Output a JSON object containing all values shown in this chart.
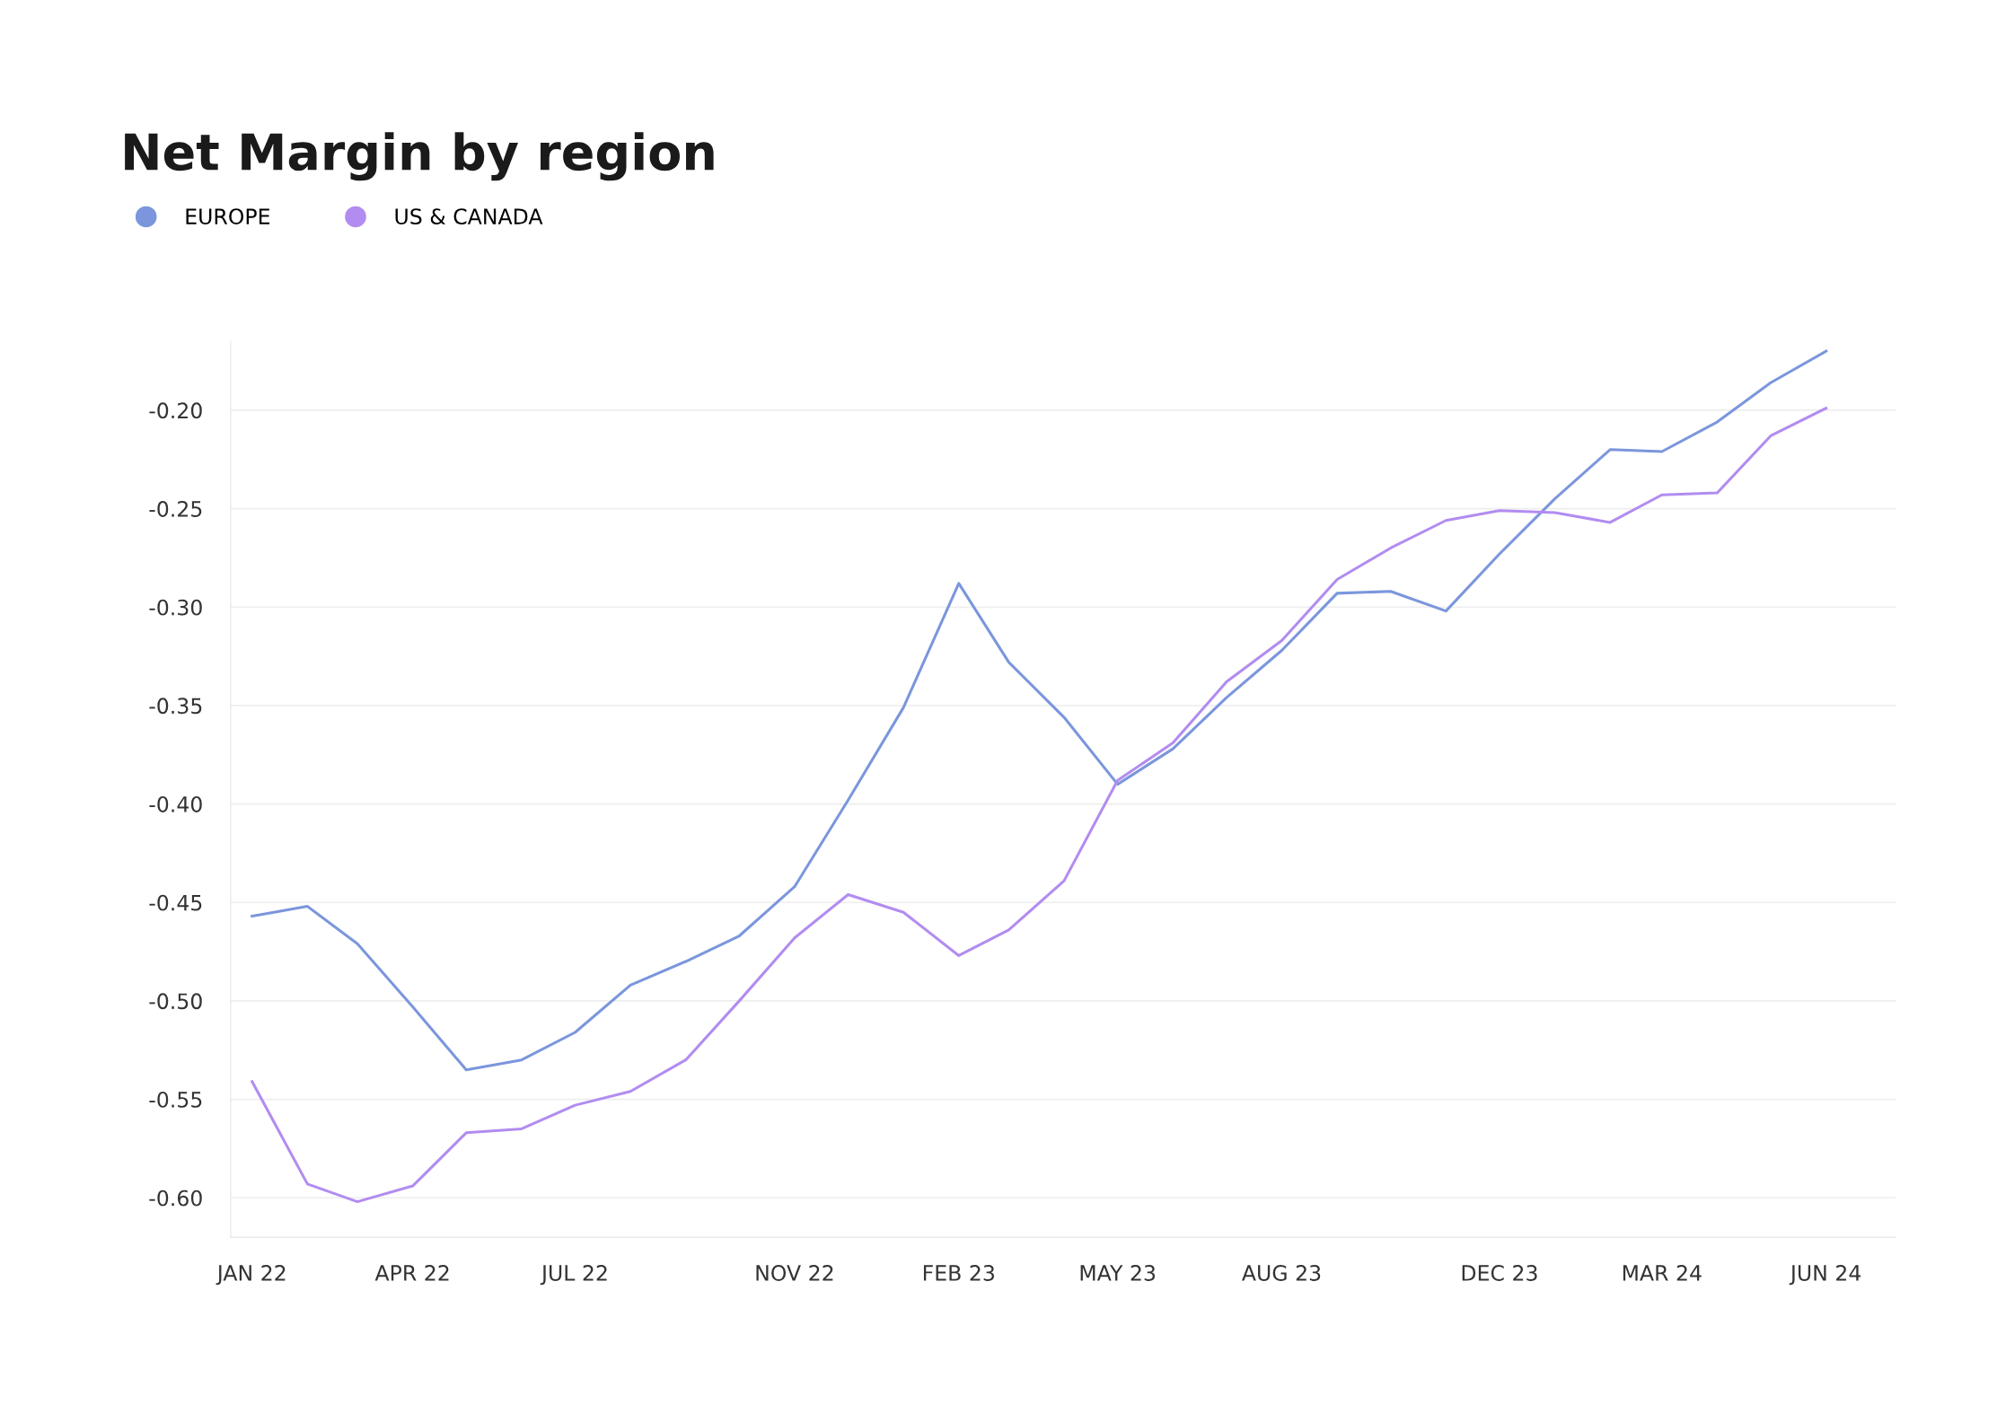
{
  "chart_data": {
    "type": "line",
    "title": "Net Margin by region",
    "x": [
      "2022-01",
      "2022-02",
      "2022-03",
      "2022-04",
      "2022-05",
      "2022-06",
      "2022-07",
      "2022-08",
      "2022-09",
      "2022-10",
      "2022-11",
      "2022-12",
      "2023-01",
      "2023-02",
      "2023-03",
      "2023-04",
      "2023-05",
      "2023-06",
      "2023-07",
      "2023-08",
      "2023-09",
      "2023-10",
      "2023-11",
      "2023-12",
      "2024-01",
      "2024-02",
      "2024-03",
      "2024-04",
      "2024-05",
      "2024-06"
    ],
    "series": [
      {
        "name": "EUROPE",
        "color": "#7b96dc",
        "values": [
          -0.457,
          -0.452,
          -0.471,
          -0.503,
          -0.535,
          -0.53,
          -0.516,
          -0.492,
          -0.48,
          -0.467,
          -0.442,
          -0.398,
          -0.351,
          -0.288,
          -0.328,
          -0.356,
          -0.39,
          -0.372,
          -0.346,
          -0.322,
          -0.293,
          -0.292,
          -0.302,
          -0.273,
          -0.245,
          -0.22,
          -0.221,
          -0.206,
          -0.186,
          -0.17
        ]
      },
      {
        "name": "US & CANADA",
        "color": "#b28cf0",
        "values": [
          -0.541,
          -0.593,
          -0.602,
          -0.594,
          -0.567,
          -0.565,
          -0.553,
          -0.546,
          -0.53,
          -0.5,
          -0.468,
          -0.446,
          -0.455,
          -0.477,
          -0.464,
          -0.439,
          -0.388,
          -0.369,
          -0.338,
          -0.317,
          -0.286,
          -0.27,
          -0.256,
          -0.251,
          -0.252,
          -0.257,
          -0.243,
          -0.242,
          -0.213,
          -0.199
        ]
      }
    ],
    "xlim": [
      "2021-12-20",
      "2024-07-10"
    ],
    "xticks": [
      {
        "value": "2022-01-01",
        "label": "JAN 22"
      },
      {
        "value": "2022-04-01",
        "label": "APR 22"
      },
      {
        "value": "2022-07-01",
        "label": "JUL 22"
      },
      {
        "value": "2022-11-01",
        "label": "NOV 22"
      },
      {
        "value": "2023-02-01",
        "label": "FEB 23"
      },
      {
        "value": "2023-05-01",
        "label": "MAY 23"
      },
      {
        "value": "2023-08-01",
        "label": "AUG 23"
      },
      {
        "value": "2023-12-01",
        "label": "DEC 23"
      },
      {
        "value": "2024-03-01",
        "label": "MAR 24"
      },
      {
        "value": "2024-06-01",
        "label": "JUN 24"
      }
    ],
    "ylim": [
      -0.62,
      -0.165
    ],
    "yticks": [
      {
        "value": -0.2,
        "label": "-0.20"
      },
      {
        "value": -0.25,
        "label": "-0.25"
      },
      {
        "value": -0.3,
        "label": "-0.30"
      },
      {
        "value": -0.35,
        "label": "-0.35"
      },
      {
        "value": -0.4,
        "label": "-0.40"
      },
      {
        "value": -0.45,
        "label": "-0.45"
      },
      {
        "value": -0.5,
        "label": "-0.50"
      },
      {
        "value": -0.55,
        "label": "-0.55"
      },
      {
        "value": -0.6,
        "label": "-0.60"
      }
    ],
    "grid": "y",
    "legend": "top left",
    "marker": "none",
    "line_style": "solid"
  }
}
